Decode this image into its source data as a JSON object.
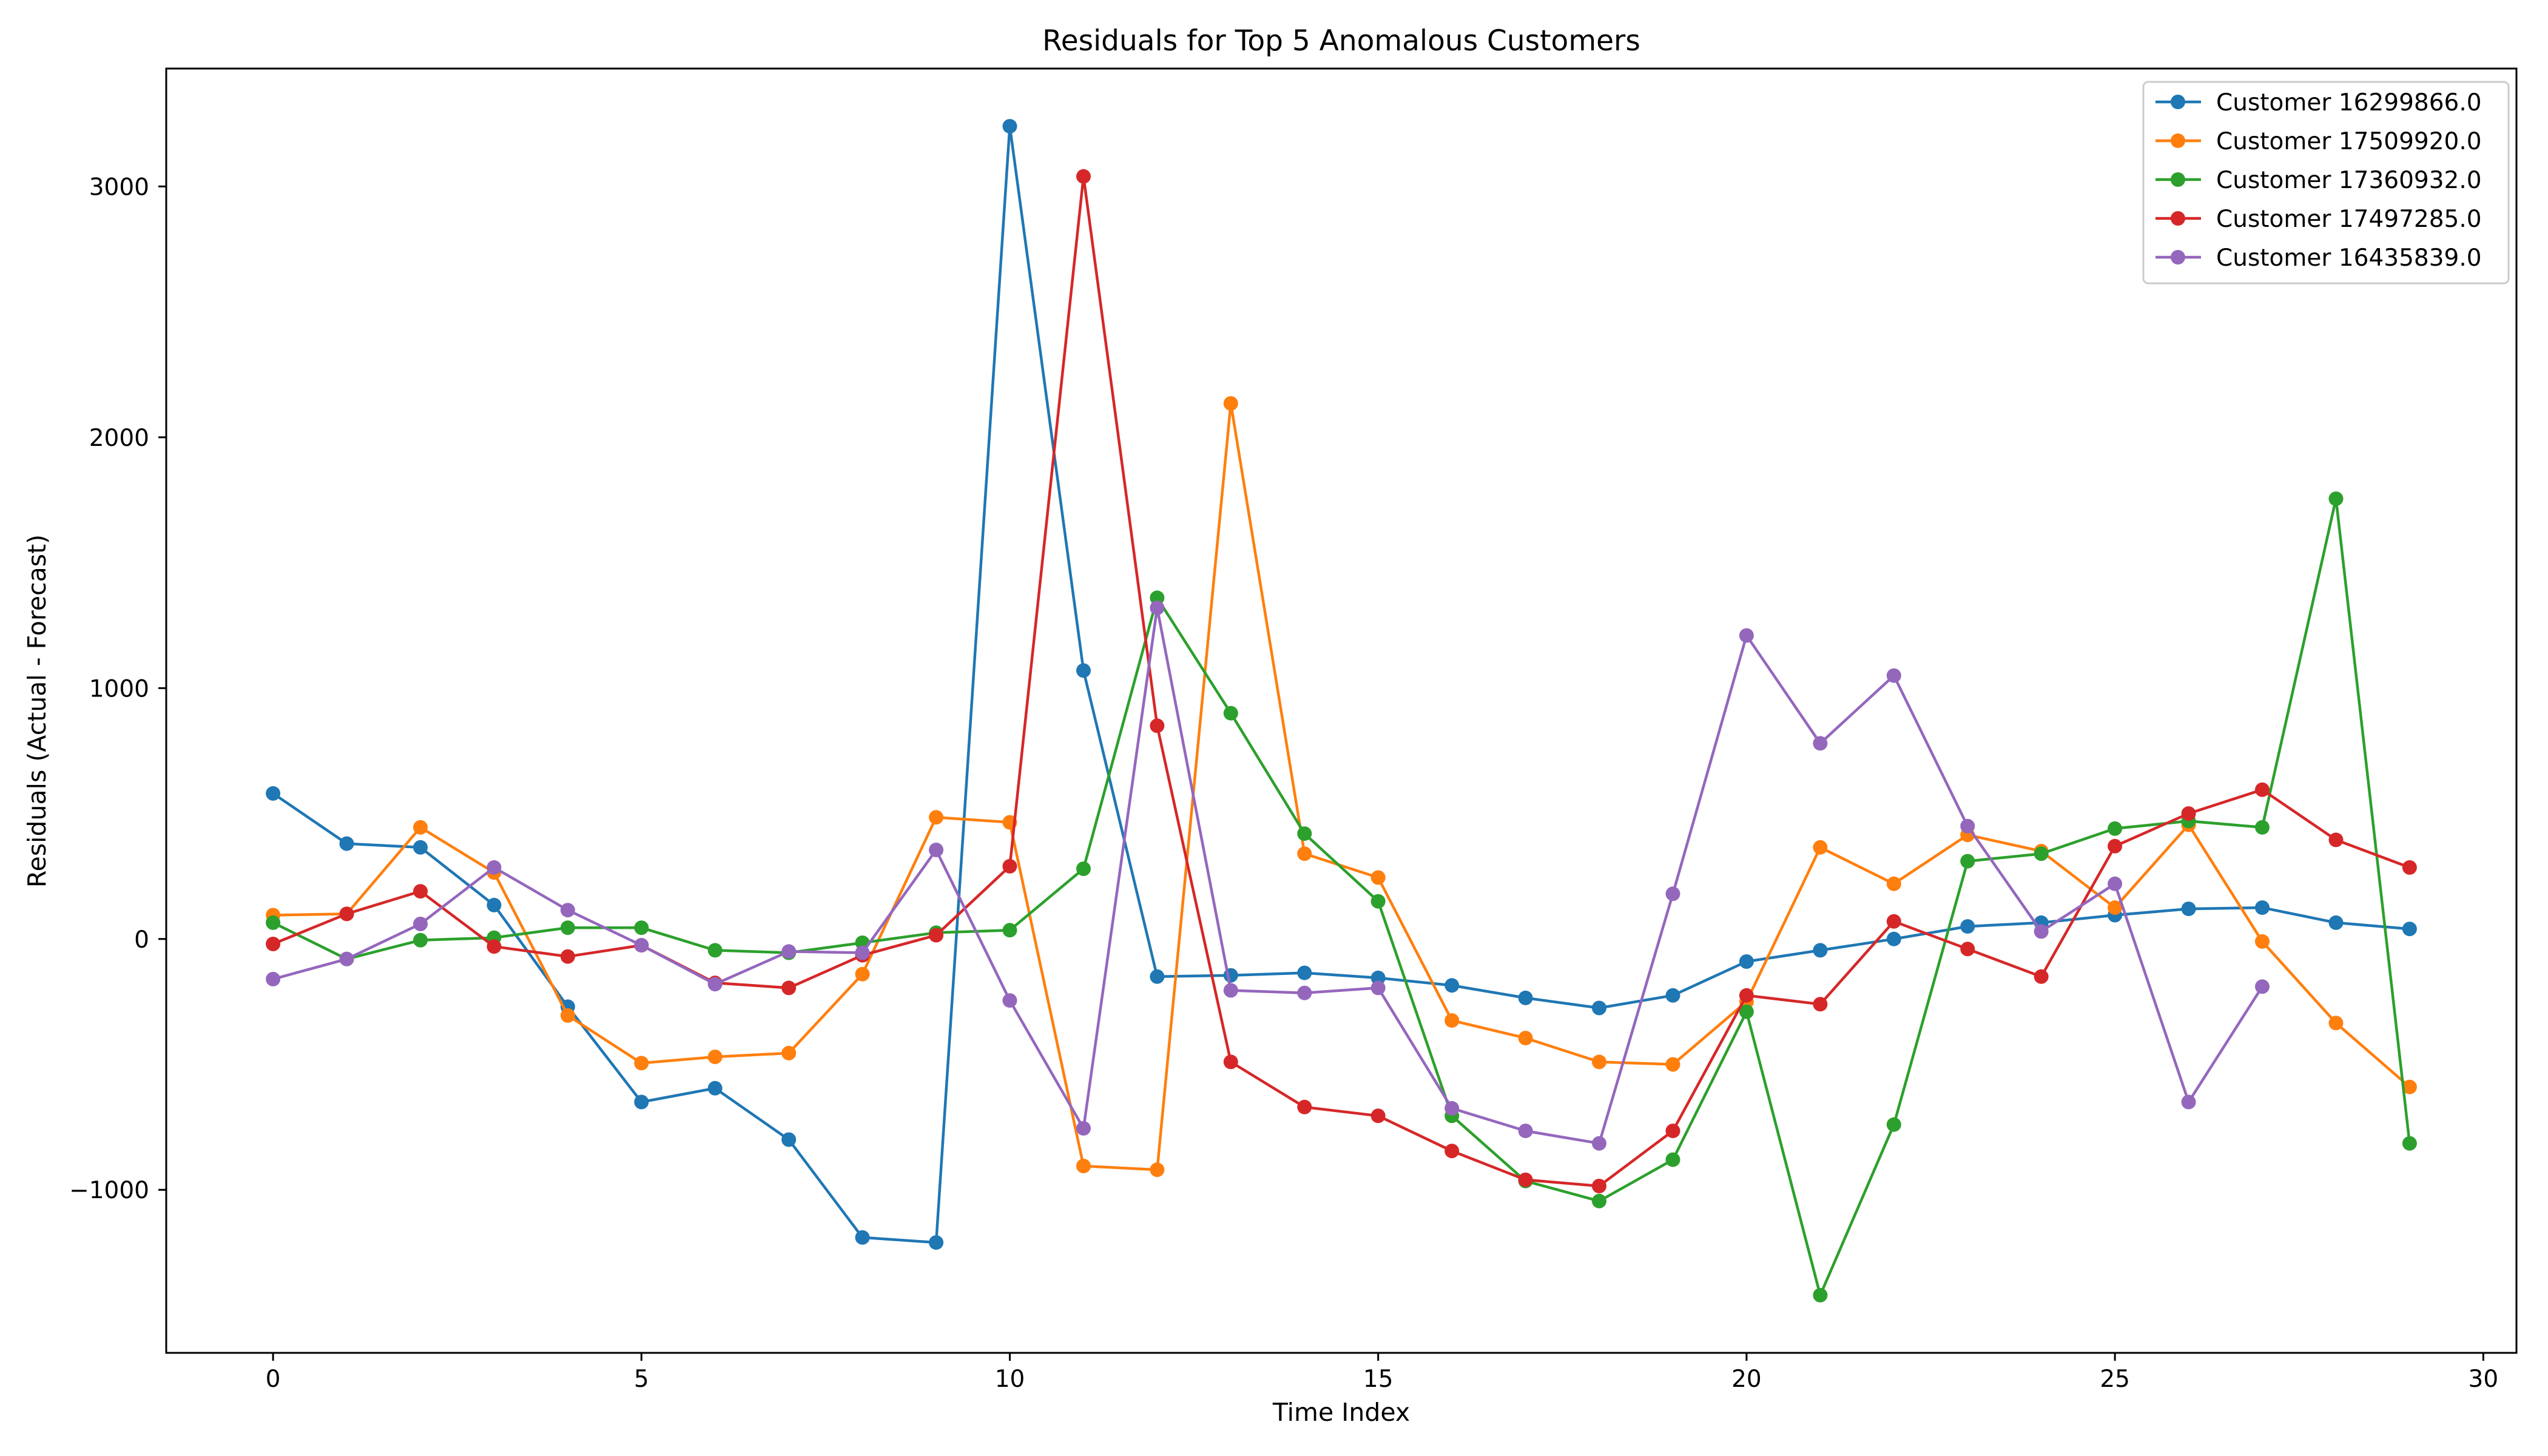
{
  "chart_data": {
    "type": "line",
    "title": "Residuals for Top 5 Anomalous Customers",
    "xlabel": "Time Index",
    "ylabel": "Residuals (Actual - Forecast)",
    "xlim": [
      -1.45,
      30.45
    ],
    "ylim": [
      -1650,
      3470
    ],
    "x_ticks": [
      0,
      5,
      10,
      15,
      20,
      25,
      30
    ],
    "x_tick_labels": [
      "0",
      "5",
      "10",
      "15",
      "20",
      "25",
      "30"
    ],
    "y_ticks": [
      -1000,
      0,
      1000,
      2000,
      3000
    ],
    "y_tick_labels": [
      "−1000",
      "0",
      "1000",
      "2000",
      "3000"
    ],
    "grid": false,
    "legend_position": "top-right",
    "marker": "circle",
    "x": [
      0,
      1,
      2,
      3,
      4,
      5,
      6,
      7,
      8,
      9,
      10,
      11,
      12,
      13,
      14,
      15,
      16,
      17,
      18,
      19,
      20,
      21,
      22,
      23,
      24,
      25,
      26,
      27,
      28,
      29
    ],
    "series": [
      {
        "name": "Customer 16299866.0",
        "color": "#1f77b4",
        "values": [
          580,
          380,
          365,
          135,
          -270,
          -650,
          -595,
          -800,
          -1190,
          -1210,
          3240,
          1070,
          -150,
          -145,
          -135,
          -155,
          -185,
          -235,
          -275,
          -225,
          -90,
          -45,
          0,
          50,
          65,
          95,
          120,
          125,
          65,
          40
        ]
      },
      {
        "name": "Customer 17509920.0",
        "color": "#ff7f0e",
        "values": [
          95,
          100,
          445,
          265,
          -305,
          -495,
          -470,
          -455,
          -140,
          485,
          465,
          -905,
          -920,
          2135,
          340,
          245,
          -325,
          -395,
          -490,
          -500,
          -250,
          365,
          220,
          415,
          350,
          125,
          455,
          -10,
          -335,
          -590
        ]
      },
      {
        "name": "Customer 17360932.0",
        "color": "#2ca02c",
        "values": [
          65,
          -80,
          -5,
          5,
          45,
          45,
          -45,
          -55,
          -15,
          25,
          35,
          280,
          1360,
          900,
          420,
          150,
          -705,
          -965,
          -1045,
          -880,
          -290,
          -1420,
          -740,
          310,
          340,
          440,
          470,
          445,
          1755,
          -815
        ]
      },
      {
        "name": "Customer 17497285.0",
        "color": "#d62728",
        "values": [
          -20,
          100,
          190,
          -30,
          -70,
          -25,
          -175,
          -195,
          -65,
          15,
          290,
          3040,
          850,
          -490,
          -670,
          -705,
          -845,
          -960,
          -985,
          -765,
          -225,
          -260,
          70,
          -40,
          -150,
          370,
          500,
          595,
          395,
          285
        ]
      },
      {
        "name": "Customer 16435839.0",
        "color": "#9467bd",
        "values": [
          -160,
          -80,
          60,
          285,
          115,
          -25,
          -180,
          -50,
          -55,
          355,
          -245,
          -755,
          1320,
          -205,
          -215,
          -195,
          -675,
          -765,
          -815,
          180,
          1210,
          780,
          1050,
          450,
          30,
          220,
          -650,
          -190,
          null,
          null
        ]
      }
    ]
  }
}
